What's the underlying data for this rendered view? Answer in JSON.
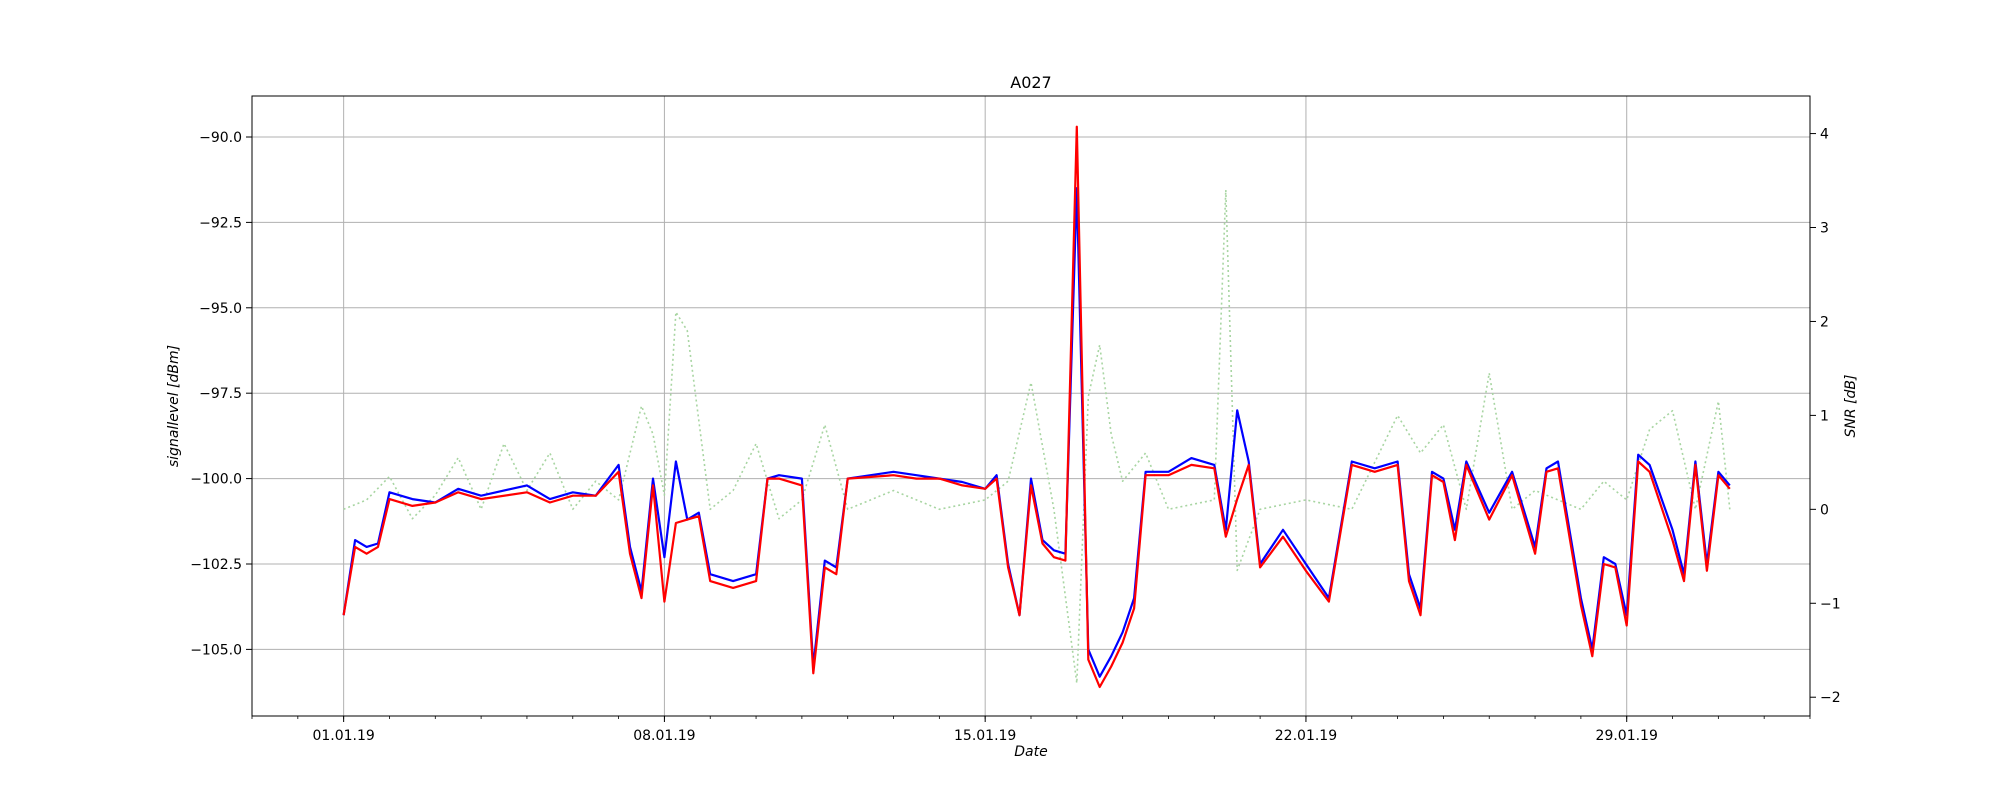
{
  "chart_data": {
    "type": "line",
    "title": "A027",
    "xlabel": "Date",
    "ylabel_left": "signallevel [dBm]",
    "ylabel_right": "SNR [dB]",
    "x_ticks": [
      "01.01.19",
      "08.01.19",
      "15.01.19",
      "22.01.19",
      "29.01.19"
    ],
    "x_range": [
      "30.12.18",
      "02.02.19"
    ],
    "y_left": {
      "ticks": [
        "−90.0",
        "−92.5",
        "−95.0",
        "−97.5",
        "−100.0",
        "−102.5",
        "−105.0"
      ],
      "tick_values": [
        -90,
        -92.5,
        -95,
        -97.5,
        -100,
        -102.5,
        -105
      ],
      "range": [
        -106.95,
        -88.8
      ]
    },
    "y_right": {
      "ticks": [
        "4",
        "3",
        "2",
        "1",
        "0",
        "−1",
        "−2"
      ],
      "tick_values": [
        4,
        3,
        2,
        1,
        0,
        -1,
        -2
      ],
      "range": [
        -2.2,
        4.4
      ]
    },
    "grid": true,
    "series": [
      {
        "axis": "left",
        "color": "#0000ff",
        "style": "solid",
        "points": [
          [
            "01.01.19",
            -104.0
          ],
          [
            "01.01.19 06:00",
            -101.8
          ],
          [
            "01.01.19 12:00",
            -102.0
          ],
          [
            "01.01.19 18:00",
            -101.9
          ],
          [
            "02.01.19",
            -100.4
          ],
          [
            "02.01.19 12:00",
            -100.6
          ],
          [
            "03.01.19",
            -100.7
          ],
          [
            "03.01.19 12:00",
            -100.3
          ],
          [
            "04.01.19",
            -100.5
          ],
          [
            "05.01.19",
            -100.2
          ],
          [
            "05.01.19 12:00",
            -100.6
          ],
          [
            "06.01.19",
            -100.4
          ],
          [
            "06.01.19 12:00",
            -100.5
          ],
          [
            "07.01.19",
            -99.6
          ],
          [
            "07.01.19 06:00",
            -102.0
          ],
          [
            "07.01.19 12:00",
            -103.3
          ],
          [
            "07.01.19 18:00",
            -100.0
          ],
          [
            "08.01.19",
            -102.3
          ],
          [
            "08.01.19 06:00",
            -99.5
          ],
          [
            "08.01.19 12:00",
            -101.2
          ],
          [
            "08.01.19 18:00",
            -101.0
          ],
          [
            "09.01.19",
            -102.8
          ],
          [
            "09.01.19 12:00",
            -103.0
          ],
          [
            "10.01.19",
            -102.8
          ],
          [
            "10.01.19 06:00",
            -100.0
          ],
          [
            "10.01.19 12:00",
            -99.9
          ],
          [
            "11.01.19",
            -100.0
          ],
          [
            "11.01.19 06:00",
            -105.5
          ],
          [
            "11.01.19 12:00",
            -102.4
          ],
          [
            "11.01.19 18:00",
            -102.6
          ],
          [
            "12.01.19",
            -100.0
          ],
          [
            "13.01.19",
            -99.8
          ],
          [
            "13.01.19 12:00",
            -99.9
          ],
          [
            "14.01.19",
            -100.0
          ],
          [
            "14.01.19 12:00",
            -100.1
          ],
          [
            "15.01.19",
            -100.3
          ],
          [
            "15.01.19 06:00",
            -99.9
          ],
          [
            "15.01.19 12:00",
            -102.5
          ],
          [
            "15.01.19 18:00",
            -104.0
          ],
          [
            "16.01.19",
            -100.0
          ],
          [
            "16.01.19 06:00",
            -101.8
          ],
          [
            "16.01.19 12:00",
            -102.1
          ],
          [
            "16.01.19 18:00",
            -102.2
          ],
          [
            "17.01.19",
            -91.5
          ],
          [
            "17.01.19 06:00",
            -105.0
          ],
          [
            "17.01.19 12:00",
            -105.8
          ],
          [
            "17.01.19 18:00",
            -105.2
          ],
          [
            "18.01.19",
            -104.5
          ],
          [
            "18.01.19 06:00",
            -103.5
          ],
          [
            "18.01.19 12:00",
            -99.8
          ],
          [
            "19.01.19",
            -99.8
          ],
          [
            "19.01.19 12:00",
            -99.4
          ],
          [
            "20.01.19",
            -99.6
          ],
          [
            "20.01.19 06:00",
            -101.5
          ],
          [
            "20.01.19 12:00",
            -98.0
          ],
          [
            "20.01.19 18:00",
            -99.5
          ],
          [
            "21.01.19",
            -102.5
          ],
          [
            "21.01.19 12:00",
            -101.5
          ],
          [
            "22.01.19",
            -102.5
          ],
          [
            "22.01.19 12:00",
            -103.5
          ],
          [
            "23.01.19",
            -99.5
          ],
          [
            "23.01.19 12:00",
            -99.7
          ],
          [
            "24.01.19",
            -99.5
          ],
          [
            "24.01.19 06:00",
            -102.8
          ],
          [
            "24.01.19 12:00",
            -103.8
          ],
          [
            "24.01.19 18:00",
            -99.8
          ],
          [
            "25.01.19",
            -100.0
          ],
          [
            "25.01.19 06:00",
            -101.5
          ],
          [
            "25.01.19 12:00",
            -99.5
          ],
          [
            "26.01.19",
            -101.0
          ],
          [
            "26.01.19 12:00",
            -99.8
          ],
          [
            "27.01.19",
            -102.0
          ],
          [
            "27.01.19 06:00",
            -99.7
          ],
          [
            "27.01.19 12:00",
            -99.5
          ],
          [
            "28.01.19",
            -103.5
          ],
          [
            "28.01.19 06:00",
            -105.0
          ],
          [
            "28.01.19 12:00",
            -102.3
          ],
          [
            "28.01.19 18:00",
            -102.5
          ],
          [
            "29.01.19",
            -104.0
          ],
          [
            "29.01.19 06:00",
            -99.3
          ],
          [
            "29.01.19 12:00",
            -99.6
          ],
          [
            "30.01.19",
            -101.5
          ],
          [
            "30.01.19 06:00",
            -102.8
          ],
          [
            "30.01.19 12:00",
            -99.5
          ],
          [
            "30.01.19 18:00",
            -102.5
          ],
          [
            "31.01.19",
            -99.8
          ],
          [
            "31.01.19 06:00",
            -100.2
          ]
        ]
      },
      {
        "axis": "left",
        "color": "#ff0000",
        "style": "solid",
        "points": [
          [
            "01.01.19",
            -104.0
          ],
          [
            "01.01.19 06:00",
            -102.0
          ],
          [
            "01.01.19 12:00",
            -102.2
          ],
          [
            "01.01.19 18:00",
            -102.0
          ],
          [
            "02.01.19",
            -100.6
          ],
          [
            "02.01.19 12:00",
            -100.8
          ],
          [
            "03.01.19",
            -100.7
          ],
          [
            "03.01.19 12:00",
            -100.4
          ],
          [
            "04.01.19",
            -100.6
          ],
          [
            "05.01.19",
            -100.4
          ],
          [
            "05.01.19 12:00",
            -100.7
          ],
          [
            "06.01.19",
            -100.5
          ],
          [
            "06.01.19 12:00",
            -100.5
          ],
          [
            "07.01.19",
            -99.8
          ],
          [
            "07.01.19 06:00",
            -102.2
          ],
          [
            "07.01.19 12:00",
            -103.5
          ],
          [
            "07.01.19 18:00",
            -100.2
          ],
          [
            "08.01.19",
            -103.6
          ],
          [
            "08.01.19 06:00",
            -101.3
          ],
          [
            "08.01.19 12:00",
            -101.2
          ],
          [
            "08.01.19 18:00",
            -101.1
          ],
          [
            "09.01.19",
            -103.0
          ],
          [
            "09.01.19 12:00",
            -103.2
          ],
          [
            "10.01.19",
            -103.0
          ],
          [
            "10.01.19 06:00",
            -100.0
          ],
          [
            "10.01.19 12:00",
            -100.0
          ],
          [
            "11.01.19",
            -100.2
          ],
          [
            "11.01.19 06:00",
            -105.7
          ],
          [
            "11.01.19 12:00",
            -102.6
          ],
          [
            "11.01.19 18:00",
            -102.8
          ],
          [
            "12.01.19",
            -100.0
          ],
          [
            "13.01.19",
            -99.9
          ],
          [
            "13.01.19 12:00",
            -100.0
          ],
          [
            "14.01.19",
            -100.0
          ],
          [
            "14.01.19 12:00",
            -100.2
          ],
          [
            "15.01.19",
            -100.3
          ],
          [
            "15.01.19 06:00",
            -100.0
          ],
          [
            "15.01.19 12:00",
            -102.6
          ],
          [
            "15.01.19 18:00",
            -104.0
          ],
          [
            "16.01.19",
            -100.2
          ],
          [
            "16.01.19 06:00",
            -101.9
          ],
          [
            "16.01.19 12:00",
            -102.3
          ],
          [
            "16.01.19 18:00",
            -102.4
          ],
          [
            "17.01.19",
            -89.7
          ],
          [
            "17.01.19 06:00",
            -105.3
          ],
          [
            "17.01.19 12:00",
            -106.1
          ],
          [
            "17.01.19 18:00",
            -105.5
          ],
          [
            "18.01.19",
            -104.8
          ],
          [
            "18.01.19 06:00",
            -103.8
          ],
          [
            "18.01.19 12:00",
            -99.9
          ],
          [
            "19.01.19",
            -99.9
          ],
          [
            "19.01.19 12:00",
            -99.6
          ],
          [
            "20.01.19",
            -99.7
          ],
          [
            "20.01.19 06:00",
            -101.7
          ],
          [
            "20.01.19 12:00",
            -100.6
          ],
          [
            "20.01.19 18:00",
            -99.6
          ],
          [
            "21.01.19",
            -102.6
          ],
          [
            "21.01.19 12:00",
            -101.7
          ],
          [
            "22.01.19",
            -102.7
          ],
          [
            "22.01.19 12:00",
            -103.6
          ],
          [
            "23.01.19",
            -99.6
          ],
          [
            "23.01.19 12:00",
            -99.8
          ],
          [
            "24.01.19",
            -99.6
          ],
          [
            "24.01.19 06:00",
            -103.0
          ],
          [
            "24.01.19 12:00",
            -104.0
          ],
          [
            "24.01.19 18:00",
            -99.9
          ],
          [
            "25.01.19",
            -100.1
          ],
          [
            "25.01.19 06:00",
            -101.8
          ],
          [
            "25.01.19 12:00",
            -99.6
          ],
          [
            "26.01.19",
            -101.2
          ],
          [
            "26.01.19 12:00",
            -99.9
          ],
          [
            "27.01.19",
            -102.2
          ],
          [
            "27.01.19 06:00",
            -99.8
          ],
          [
            "27.01.19 12:00",
            -99.7
          ],
          [
            "28.01.19",
            -103.7
          ],
          [
            "28.01.19 06:00",
            -105.2
          ],
          [
            "28.01.19 12:00",
            -102.5
          ],
          [
            "28.01.19 18:00",
            -102.6
          ],
          [
            "29.01.19",
            -104.3
          ],
          [
            "29.01.19 06:00",
            -99.5
          ],
          [
            "29.01.19 12:00",
            -99.8
          ],
          [
            "30.01.19",
            -101.8
          ],
          [
            "30.01.19 06:00",
            -103.0
          ],
          [
            "30.01.19 12:00",
            -99.6
          ],
          [
            "30.01.19 18:00",
            -102.7
          ],
          [
            "31.01.19",
            -99.9
          ],
          [
            "31.01.19 06:00",
            -100.3
          ]
        ]
      },
      {
        "axis": "right",
        "color": "#a8d5a2",
        "style": "dotted",
        "points": [
          [
            "01.01.19",
            0.0
          ],
          [
            "01.01.19 12:00",
            0.1
          ],
          [
            "02.01.19",
            0.35
          ],
          [
            "02.01.19 12:00",
            -0.1
          ],
          [
            "03.01.19",
            0.15
          ],
          [
            "03.01.19 12:00",
            0.55
          ],
          [
            "04.01.19",
            0.0
          ],
          [
            "04.01.19 12:00",
            0.7
          ],
          [
            "05.01.19",
            0.2
          ],
          [
            "05.01.19 12:00",
            0.6
          ],
          [
            "06.01.19",
            0.0
          ],
          [
            "06.01.19 12:00",
            0.3
          ],
          [
            "07.01.19",
            0.1
          ],
          [
            "07.01.19 12:00",
            1.1
          ],
          [
            "07.01.19 18:00",
            0.8
          ],
          [
            "08.01.19",
            0.15
          ],
          [
            "08.01.19 06:00",
            2.1
          ],
          [
            "08.01.19 12:00",
            1.9
          ],
          [
            "09.01.19",
            0.0
          ],
          [
            "09.01.19 12:00",
            0.2
          ],
          [
            "10.01.19",
            0.7
          ],
          [
            "10.01.19 12:00",
            -0.1
          ],
          [
            "11.01.19",
            0.1
          ],
          [
            "11.01.19 12:00",
            0.9
          ],
          [
            "12.01.19",
            0.0
          ],
          [
            "13.01.19",
            0.2
          ],
          [
            "14.01.19",
            0.0
          ],
          [
            "15.01.19",
            0.1
          ],
          [
            "15.01.19 12:00",
            0.3
          ],
          [
            "16.01.19",
            1.35
          ],
          [
            "16.01.19 12:00",
            0.0
          ],
          [
            "17.01.19",
            -1.85
          ],
          [
            "17.01.19 06:00",
            1.2
          ],
          [
            "17.01.19 12:00",
            1.75
          ],
          [
            "17.01.19 18:00",
            0.8
          ],
          [
            "18.01.19",
            0.3
          ],
          [
            "18.01.19 12:00",
            0.6
          ],
          [
            "19.01.19",
            0.0
          ],
          [
            "20.01.19",
            0.1
          ],
          [
            "20.01.19 06:00",
            3.4
          ],
          [
            "20.01.19 12:00",
            -0.65
          ],
          [
            "21.01.19",
            0.0
          ],
          [
            "22.01.19",
            0.1
          ],
          [
            "23.01.19",
            0.0
          ],
          [
            "24.01.19",
            1.0
          ],
          [
            "24.01.19 12:00",
            0.6
          ],
          [
            "25.01.19",
            0.9
          ],
          [
            "25.01.19 12:00",
            0.0
          ],
          [
            "26.01.19",
            1.45
          ],
          [
            "26.01.19 12:00",
            0.0
          ],
          [
            "27.01.19",
            0.2
          ],
          [
            "28.01.19",
            0.0
          ],
          [
            "28.01.19 12:00",
            0.3
          ],
          [
            "29.01.19",
            0.1
          ],
          [
            "29.01.19 12:00",
            0.85
          ],
          [
            "30.01.19",
            1.05
          ],
          [
            "30.01.19 12:00",
            0.0
          ],
          [
            "31.01.19",
            1.15
          ],
          [
            "31.01.19 06:00",
            0.0
          ]
        ]
      }
    ]
  }
}
